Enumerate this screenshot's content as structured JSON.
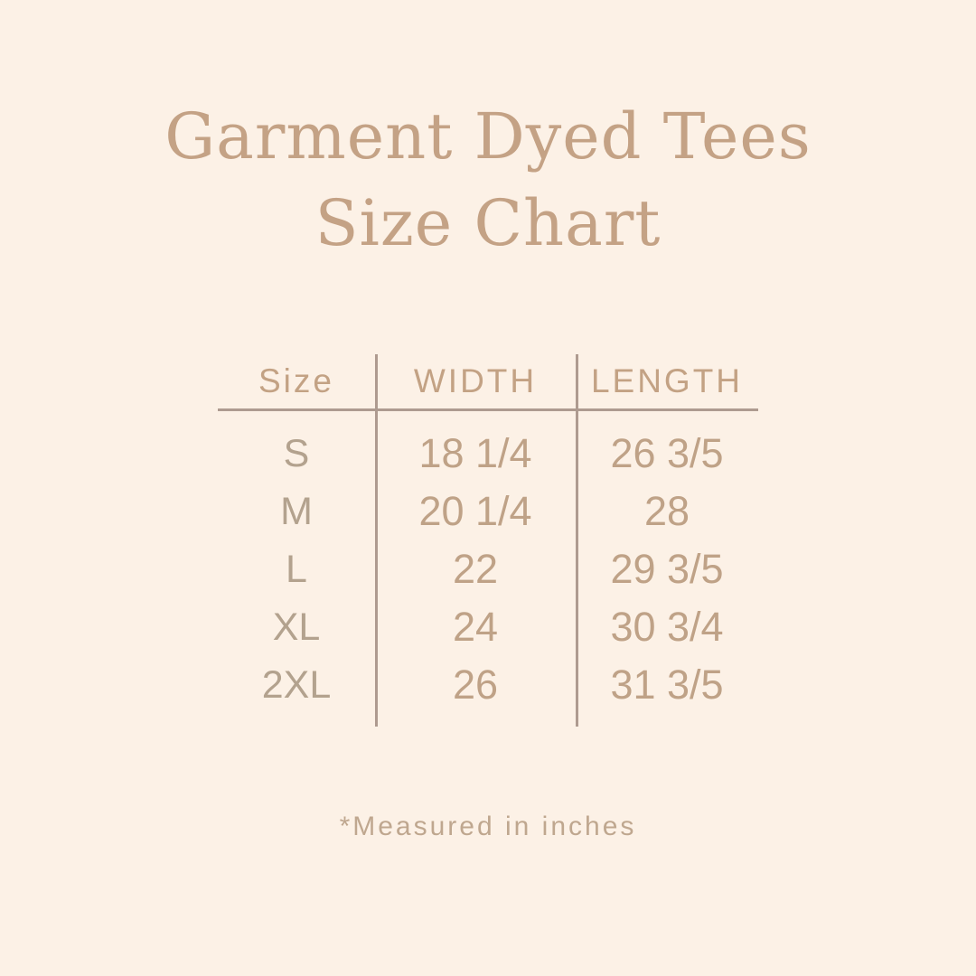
{
  "colors": {
    "bg": "#FCF1E6",
    "title": "#C4A285",
    "header-text": "#C3A284",
    "body-text": "#BFA287",
    "size-text": "#B3A28E",
    "line": "#AE9B90",
    "footer-text": "#BFA78F"
  },
  "title": {
    "line1": "Garment Dyed Tees",
    "line2": "Size Chart"
  },
  "table": {
    "columns": {
      "size": "Size",
      "width": "WIDTH",
      "length": "LENGTH"
    },
    "rows": [
      {
        "size": "S",
        "width": "18 1/4",
        "length": "26 3/5"
      },
      {
        "size": "M",
        "width": "20 1/4",
        "length": "28"
      },
      {
        "size": "L",
        "width": "22",
        "length": "29 3/5"
      },
      {
        "size": "XL",
        "width": "24",
        "length": "30 3/4"
      },
      {
        "size": "2XL",
        "width": "26",
        "length": "31 3/5"
      }
    ]
  },
  "footer": {
    "note": "*Measured in inches"
  },
  "chart_data": {
    "type": "table",
    "title": "Garment Dyed Tees Size Chart",
    "columns": [
      "Size",
      "WIDTH",
      "LENGTH"
    ],
    "rows": [
      [
        "S",
        "18 1/4",
        "26 3/5"
      ],
      [
        "M",
        "20 1/4",
        "28"
      ],
      [
        "L",
        "22",
        "29 3/5"
      ],
      [
        "XL",
        "24",
        "30 3/4"
      ],
      [
        "2XL",
        "26",
        "31 3/5"
      ]
    ],
    "units": "inches",
    "note": "*Measured in inches"
  }
}
